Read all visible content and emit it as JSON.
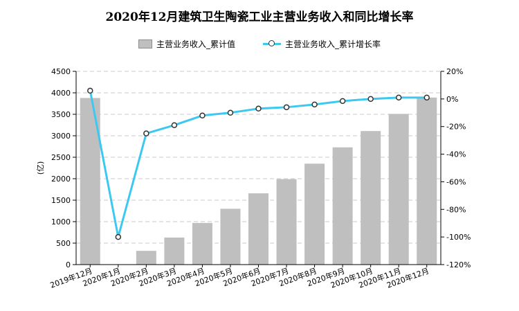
{
  "chart_data": {
    "type": "bar",
    "title": "2020年12月建筑卫生陶瓷工业主营业务收入和同比增长率",
    "categories": [
      "2019年12月",
      "2020年1月",
      "2020年2月",
      "2020年3月",
      "2020年4月",
      "2020年5月",
      "2020年6月",
      "2020年7月",
      "2020年8月",
      "2020年9月",
      "2020年10月",
      "2020年11月",
      "2020年12月"
    ],
    "series": [
      {
        "name": "主营业务收入_累计值",
        "type": "bar",
        "axis": "left",
        "color": "#bfbfbf",
        "values": [
          3880,
          null,
          320,
          630,
          970,
          1300,
          1660,
          1990,
          2350,
          2730,
          3110,
          3510,
          3890
        ]
      },
      {
        "name": "主营业务收入_累计增长率",
        "type": "line",
        "axis": "right",
        "color": "#3cc8f0",
        "values": [
          6,
          -100,
          -25,
          -19,
          -12,
          -10,
          -7,
          -6,
          -4,
          -1.5,
          0,
          1,
          1
        ]
      }
    ],
    "ylabel": "(亿)",
    "ylim": [
      0,
      4500
    ],
    "y_ticks": [
      "0",
      "500",
      "1000",
      "1500",
      "2000",
      "2500",
      "3000",
      "3500",
      "4000",
      "4500"
    ],
    "y2lim": [
      -120,
      20
    ],
    "y2_ticks": [
      "-120%",
      "-100%",
      "-80%",
      "-60%",
      "-40%",
      "-20%",
      "0%",
      "20%"
    ],
    "grid": true,
    "legend_position": "top-center"
  }
}
